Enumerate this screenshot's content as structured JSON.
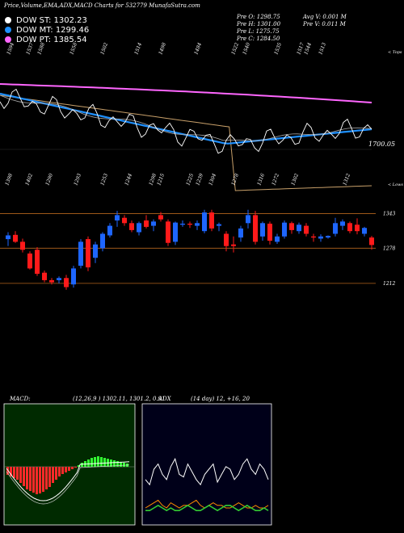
{
  "page_title": "Price,Volume,EMA,ADX,MACD Charts for 532779 MunafaSutra.com",
  "dow": [
    {
      "label": "DOW ST: 1302.23",
      "color": "#ffffff"
    },
    {
      "label": "DOW MT: 1299.46",
      "color": "#1e90ff"
    },
    {
      "label": "DOW PT: 1385.54",
      "color": "#ff66ff"
    }
  ],
  "quote": {
    "pre_o": "Pre  O: 1298.75",
    "pre_h": "Pre  H: 1301.00",
    "pre_l": "Pre  L: 1275.75",
    "pre_c": "Pre  C: 1284.50",
    "avg_v": "Avg V: 0.001 M",
    "pre_v": "Pre  V: 0.011 M"
  },
  "upper_panel": {
    "corner_label": "< Tops",
    "level_label": "1700.05",
    "top_labels": [
      "1594",
      "1537",
      "1588",
      "1558",
      "1502",
      "1514",
      "1498",
      "1484",
      "1522",
      "1540",
      "1535",
      "1517",
      "1544",
      "1513"
    ]
  },
  "mid_panel": {
    "corner_label": "< Lows",
    "top_labels": [
      "1398",
      "1402",
      "1290",
      "1293",
      "1253",
      "1244",
      "1298",
      "1215",
      "1225",
      "1239",
      "1304",
      "1278",
      "1316",
      "1272",
      "1302",
      "1312"
    ],
    "levels": [
      {
        "label": "1343",
        "value": 1343
      },
      {
        "label": "1278",
        "value": 1278
      },
      {
        "label": "1212",
        "value": 1212
      }
    ]
  },
  "macd_header": {
    "label": "MACD:",
    "params": "(12,26,9 ) 1302.11,  1301.2,  0.91",
    "adx": "ADX",
    "adx_params": "(14  day) 12,  +16,  20"
  },
  "chart_data": [
    {
      "type": "candlestick",
      "title": "",
      "ylim": [
        1180,
        1380
      ],
      "candles": [
        {
          "o": 1295,
          "h": 1308,
          "l": 1282,
          "c": 1302
        },
        {
          "o": 1303,
          "h": 1310,
          "l": 1288,
          "c": 1290
        },
        {
          "o": 1290,
          "h": 1296,
          "l": 1270,
          "c": 1275
        },
        {
          "o": 1268,
          "h": 1272,
          "l": 1238,
          "c": 1240
        },
        {
          "o": 1275,
          "h": 1280,
          "l": 1226,
          "c": 1230
        },
        {
          "o": 1232,
          "h": 1236,
          "l": 1214,
          "c": 1218
        },
        {
          "o": 1218,
          "h": 1222,
          "l": 1210,
          "c": 1214
        },
        {
          "o": 1218,
          "h": 1225,
          "l": 1212,
          "c": 1222
        },
        {
          "o": 1222,
          "h": 1228,
          "l": 1200,
          "c": 1205
        },
        {
          "o": 1210,
          "h": 1245,
          "l": 1204,
          "c": 1240
        },
        {
          "o": 1245,
          "h": 1295,
          "l": 1240,
          "c": 1290
        },
        {
          "o": 1295,
          "h": 1300,
          "l": 1235,
          "c": 1242
        },
        {
          "o": 1260,
          "h": 1290,
          "l": 1250,
          "c": 1285
        },
        {
          "o": 1278,
          "h": 1308,
          "l": 1272,
          "c": 1305
        },
        {
          "o": 1302,
          "h": 1325,
          "l": 1298,
          "c": 1320
        },
        {
          "o": 1330,
          "h": 1348,
          "l": 1318,
          "c": 1340
        },
        {
          "o": 1335,
          "h": 1340,
          "l": 1320,
          "c": 1325
        },
        {
          "o": 1325,
          "h": 1330,
          "l": 1308,
          "c": 1312
        },
        {
          "o": 1308,
          "h": 1328,
          "l": 1302,
          "c": 1325
        },
        {
          "o": 1330,
          "h": 1340,
          "l": 1315,
          "c": 1318
        },
        {
          "o": 1320,
          "h": 1332,
          "l": 1310,
          "c": 1328
        },
        {
          "o": 1340,
          "h": 1346,
          "l": 1328,
          "c": 1332
        },
        {
          "o": 1328,
          "h": 1332,
          "l": 1282,
          "c": 1288
        },
        {
          "o": 1290,
          "h": 1328,
          "l": 1284,
          "c": 1326
        },
        {
          "o": 1322,
          "h": 1330,
          "l": 1318,
          "c": 1324
        },
        {
          "o": 1324,
          "h": 1328,
          "l": 1316,
          "c": 1322
        },
        {
          "o": 1320,
          "h": 1330,
          "l": 1312,
          "c": 1325
        },
        {
          "o": 1310,
          "h": 1350,
          "l": 1306,
          "c": 1345
        },
        {
          "o": 1345,
          "h": 1350,
          "l": 1310,
          "c": 1315
        },
        {
          "o": 1320,
          "h": 1326,
          "l": 1310,
          "c": 1323
        },
        {
          "o": 1305,
          "h": 1310,
          "l": 1272,
          "c": 1282
        },
        {
          "o": 1285,
          "h": 1300,
          "l": 1270,
          "c": 1282
        },
        {
          "o": 1298,
          "h": 1320,
          "l": 1290,
          "c": 1315
        },
        {
          "o": 1325,
          "h": 1350,
          "l": 1315,
          "c": 1340
        },
        {
          "o": 1340,
          "h": 1348,
          "l": 1285,
          "c": 1290
        },
        {
          "o": 1300,
          "h": 1328,
          "l": 1292,
          "c": 1325
        },
        {
          "o": 1324,
          "h": 1328,
          "l": 1285,
          "c": 1292
        },
        {
          "o": 1290,
          "h": 1305,
          "l": 1286,
          "c": 1300
        },
        {
          "o": 1300,
          "h": 1330,
          "l": 1296,
          "c": 1326
        },
        {
          "o": 1325,
          "h": 1328,
          "l": 1305,
          "c": 1312
        },
        {
          "o": 1310,
          "h": 1326,
          "l": 1305,
          "c": 1322
        },
        {
          "o": 1320,
          "h": 1325,
          "l": 1300,
          "c": 1305
        },
        {
          "o": 1300,
          "h": 1305,
          "l": 1290,
          "c": 1298
        },
        {
          "o": 1296,
          "h": 1304,
          "l": 1290,
          "c": 1300
        },
        {
          "o": 1298,
          "h": 1302,
          "l": 1296,
          "c": 1301
        },
        {
          "o": 1305,
          "h": 1335,
          "l": 1300,
          "c": 1325
        },
        {
          "o": 1320,
          "h": 1332,
          "l": 1312,
          "c": 1328
        },
        {
          "o": 1325,
          "h": 1328,
          "l": 1306,
          "c": 1310
        },
        {
          "o": 1322,
          "h": 1334,
          "l": 1304,
          "c": 1310
        },
        {
          "o": 1305,
          "h": 1318,
          "l": 1300,
          "c": 1316
        },
        {
          "o": 1298,
          "h": 1301,
          "l": 1275,
          "c": 1284
        }
      ]
    },
    {
      "type": "bar",
      "title": "MACD",
      "ylim": [
        -40,
        20
      ],
      "values": [
        -10,
        -12,
        -14,
        -16,
        -20,
        -24,
        -28,
        -30,
        -32,
        -34,
        -33,
        -31,
        -28,
        -25,
        -20,
        -16,
        -12,
        -9,
        -7,
        -5,
        -3,
        -1,
        2,
        5,
        7,
        9,
        11,
        12,
        13,
        12,
        11,
        10,
        9,
        8,
        7,
        6,
        5,
        4
      ]
    },
    {
      "type": "line",
      "title": "ADX",
      "series": [
        {
          "name": "+DI",
          "color": "#ffffff",
          "values": [
            16,
            14,
            20,
            22,
            18,
            16,
            21,
            24,
            18,
            17,
            22,
            19,
            16,
            14,
            18,
            20,
            22,
            15,
            18,
            21,
            20,
            16,
            18,
            22,
            24,
            20,
            18,
            22,
            20,
            16
          ]
        },
        {
          "name": "-DI",
          "color": "#ff8c00",
          "values": [
            5,
            6,
            7,
            8,
            6,
            5,
            7,
            6,
            5,
            6,
            6,
            7,
            8,
            6,
            5,
            6,
            7,
            6,
            6,
            5,
            5,
            6,
            7,
            6,
            5,
            5,
            6,
            5,
            5,
            6
          ]
        },
        {
          "name": "ADX",
          "color": "#33cc33",
          "values": [
            4,
            4,
            5,
            6,
            5,
            4,
            5,
            4,
            4,
            5,
            6,
            5,
            4,
            4,
            5,
            6,
            5,
            4,
            5,
            6,
            6,
            5,
            4,
            5,
            6,
            5,
            4,
            4,
            5,
            4
          ]
        }
      ]
    }
  ]
}
